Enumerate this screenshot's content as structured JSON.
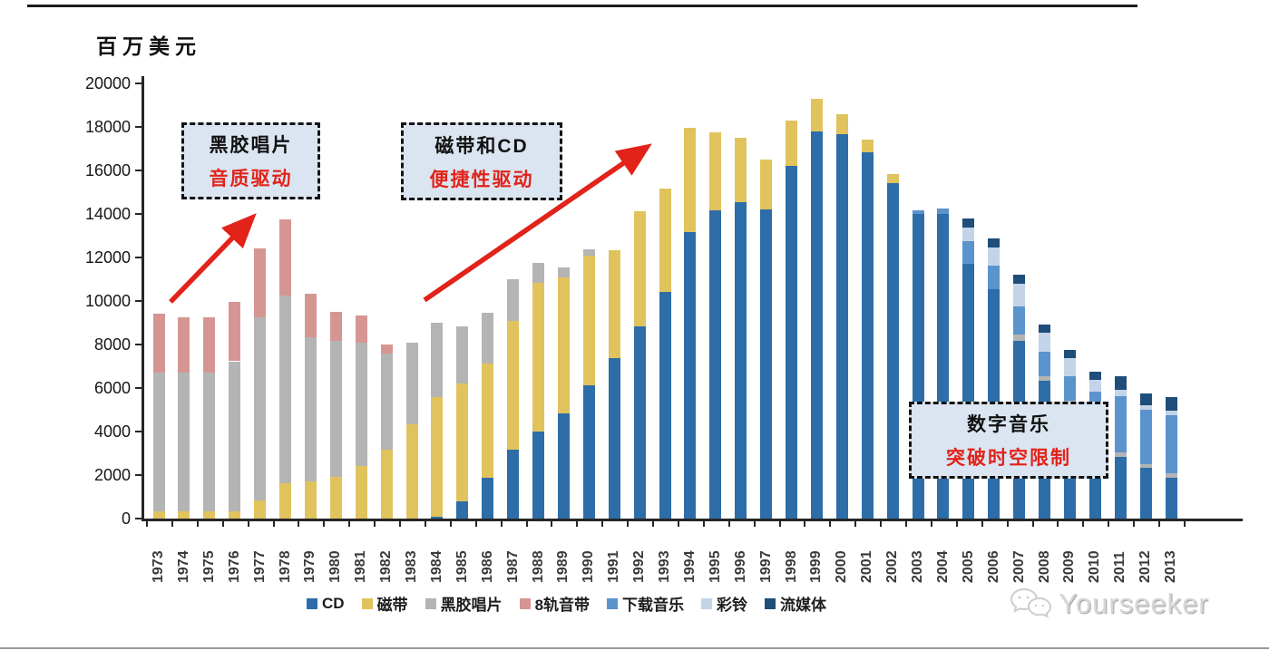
{
  "unit_label": "百万美元",
  "watermark": {
    "text": "Yourseeker"
  },
  "chart_data": {
    "type": "bar",
    "stacked": true,
    "title": "",
    "unit_label": "百万美元",
    "xlabel": "",
    "ylabel": "百万美元",
    "ylim": [
      0,
      20000
    ],
    "y_tick_step": 2000,
    "y_ticks": [
      0,
      2000,
      4000,
      6000,
      8000,
      10000,
      12000,
      14000,
      16000,
      18000,
      20000
    ],
    "grid": false,
    "legend_position": "bottom",
    "categories": [
      1973,
      1974,
      1975,
      1976,
      1977,
      1978,
      1979,
      1980,
      1981,
      1982,
      1983,
      1984,
      1985,
      1986,
      1987,
      1988,
      1989,
      1990,
      1991,
      1992,
      1993,
      1994,
      1995,
      1996,
      1997,
      1998,
      1999,
      2000,
      2001,
      2002,
      2003,
      2004,
      2005,
      2006,
      2007,
      2008,
      2009,
      2010,
      2011,
      2012,
      2013
    ],
    "series": [
      {
        "name": "CD",
        "color": "#2d6da8",
        "values": [
          0,
          0,
          0,
          0,
          0,
          0,
          0,
          0,
          0,
          0,
          0,
          100,
          800,
          1890,
          3150,
          4000,
          4830,
          6130,
          7390,
          8820,
          10420,
          13150,
          14150,
          14560,
          14220,
          16200,
          17780,
          17680,
          16840,
          15400,
          14000,
          14000,
          11700,
          10560,
          8180,
          6330,
          5250,
          4580,
          2830,
          2320,
          1890
        ]
      },
      {
        "name": "磁带",
        "color": "#e1c35e",
        "values": [
          320,
          320,
          330,
          330,
          830,
          1610,
          1720,
          1900,
          2410,
          3180,
          4330,
          5490,
          5390,
          5250,
          5930,
          6840,
          6260,
          5960,
          4940,
          5300,
          4750,
          4800,
          3590,
          2940,
          2300,
          2090,
          1530,
          890,
          590,
          420,
          0,
          0,
          0,
          0,
          0,
          0,
          0,
          0,
          0,
          0,
          0
        ]
      },
      {
        "name": "黑胶唱片",
        "color": "#b4b4b4",
        "values": [
          6400,
          6380,
          6370,
          6900,
          8440,
          8630,
          6630,
          6250,
          5660,
          4400,
          3770,
          3400,
          2640,
          2310,
          1920,
          920,
          460,
          280,
          0,
          0,
          0,
          0,
          0,
          0,
          0,
          0,
          0,
          0,
          0,
          0,
          0,
          0,
          0,
          0,
          270,
          210,
          170,
          140,
          210,
          170,
          180
        ]
      },
      {
        "name": "8轨音带",
        "color": "#d59693",
        "values": [
          2680,
          2540,
          2530,
          2720,
          3130,
          3510,
          1980,
          1350,
          1260,
          420,
          0,
          0,
          0,
          0,
          0,
          0,
          0,
          0,
          0,
          0,
          0,
          0,
          0,
          0,
          0,
          0,
          0,
          0,
          0,
          0,
          0,
          0,
          0,
          0,
          0,
          0,
          0,
          0,
          0,
          0,
          0
        ]
      },
      {
        "name": "下载音乐",
        "color": "#5b93cd",
        "values": [
          0,
          0,
          0,
          0,
          0,
          0,
          0,
          0,
          0,
          0,
          0,
          0,
          0,
          0,
          0,
          0,
          0,
          0,
          0,
          0,
          0,
          0,
          0,
          0,
          0,
          0,
          0,
          0,
          0,
          0,
          150,
          240,
          1050,
          1070,
          1300,
          1110,
          1140,
          1120,
          2580,
          2510,
          2690
        ]
      },
      {
        "name": "彩铃",
        "color": "#c3d4e9",
        "values": [
          0,
          0,
          0,
          0,
          0,
          0,
          0,
          0,
          0,
          0,
          0,
          0,
          0,
          0,
          0,
          0,
          0,
          0,
          0,
          0,
          0,
          0,
          0,
          0,
          0,
          0,
          0,
          0,
          0,
          0,
          0,
          0,
          630,
          840,
          1050,
          910,
          810,
          520,
          280,
          210,
          200
        ]
      },
      {
        "name": "流媒体",
        "color": "#1e4e79",
        "values": [
          0,
          0,
          0,
          0,
          0,
          0,
          0,
          0,
          0,
          0,
          0,
          0,
          0,
          0,
          0,
          0,
          0,
          0,
          0,
          0,
          0,
          0,
          0,
          0,
          0,
          0,
          0,
          0,
          0,
          0,
          0,
          0,
          420,
          420,
          390,
          350,
          380,
          390,
          650,
          560,
          640
        ]
      }
    ],
    "annotations": [
      {
        "title": "黑胶唱片",
        "subtitle": "音质驱动"
      },
      {
        "title": "磁带和CD",
        "subtitle": "便捷性驱动"
      },
      {
        "title": "数字音乐",
        "subtitle": "突破时空限制"
      }
    ],
    "annotation_colors": {
      "title": "#111111",
      "subtitle": "#e2231a",
      "box_fill": "#dbe5f1",
      "box_border": "#131313",
      "arrow": "#e2231a"
    }
  }
}
